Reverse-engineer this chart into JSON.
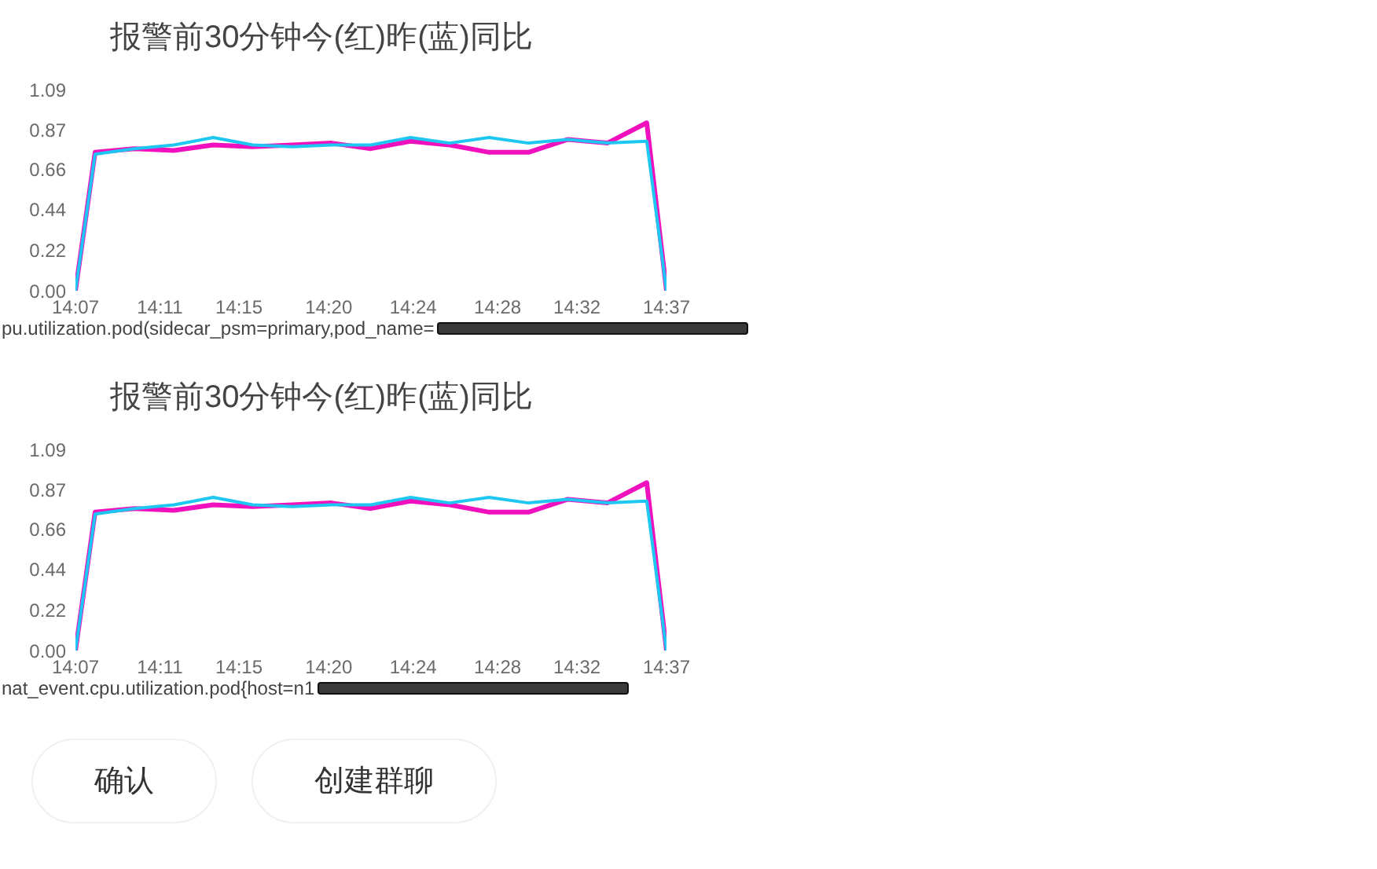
{
  "chart_data": [
    {
      "type": "line",
      "title": "报警前30分钟今(红)昨(蓝)同比",
      "annotations": [
        "pu.utilization.pod(sidecar_psm=primary,pod_name="
      ],
      "x": [
        14.1167,
        14.1333,
        14.1667,
        14.2,
        14.2333,
        14.2667,
        14.3,
        14.3333,
        14.3667,
        14.4,
        14.4333,
        14.4667,
        14.5,
        14.5333,
        14.5667,
        14.6,
        14.6167
      ],
      "series": [
        {
          "color": "#f010be",
          "values": [
            0,
            0.75,
            0.77,
            0.76,
            0.79,
            0.78,
            0.79,
            0.8,
            0.77,
            0.81,
            0.79,
            0.75,
            0.75,
            0.82,
            0.8,
            0.91,
            0
          ]
        },
        {
          "color": "#1ec6f2",
          "values": [
            0,
            0.74,
            0.77,
            0.79,
            0.83,
            0.79,
            0.78,
            0.79,
            0.79,
            0.83,
            0.8,
            0.83,
            0.8,
            0.82,
            0.8,
            0.81,
            0
          ]
        }
      ],
      "xlim": [
        14.1167,
        14.6167
      ],
      "xticks": [
        {
          "value": 14.1167,
          "label": "14:07"
        },
        {
          "value": 14.1881,
          "label": "14:11"
        },
        {
          "value": 14.255,
          "label": "14:15"
        },
        {
          "value": 14.331,
          "label": "14:20"
        },
        {
          "value": 14.4024,
          "label": "14:24"
        },
        {
          "value": 14.4738,
          "label": "14:28"
        },
        {
          "value": 14.541,
          "label": "14:32"
        },
        {
          "value": 14.6167,
          "label": "14:37"
        }
      ],
      "ylim": [
        0,
        1.09
      ],
      "yticks": [
        {
          "value": 0,
          "label": "0.00"
        },
        0.22,
        0.44,
        0.66,
        0.87,
        1.09
      ]
    },
    {
      "type": "line",
      "title": "报警前30分钟今(红)昨(蓝)同比",
      "annotations": [
        "nat_event.cpu.utilization.pod{host=n1"
      ],
      "x": [
        14.1167,
        14.1333,
        14.1667,
        14.2,
        14.2333,
        14.2667,
        14.3,
        14.3333,
        14.3667,
        14.4,
        14.4333,
        14.4667,
        14.5,
        14.5333,
        14.5667,
        14.6,
        14.6167
      ],
      "series": [
        {
          "color": "#f010be",
          "values": [
            0,
            0.75,
            0.77,
            0.76,
            0.79,
            0.78,
            0.79,
            0.8,
            0.77,
            0.81,
            0.79,
            0.75,
            0.75,
            0.82,
            0.8,
            0.91,
            0
          ]
        },
        {
          "color": "#1ec6f2",
          "values": [
            0,
            0.74,
            0.77,
            0.79,
            0.83,
            0.79,
            0.78,
            0.79,
            0.79,
            0.83,
            0.8,
            0.83,
            0.8,
            0.82,
            0.8,
            0.81,
            0
          ]
        }
      ],
      "xlim": [
        14.1167,
        14.6167
      ],
      "xticks": [
        {
          "value": 14.1167,
          "label": "14:07"
        },
        {
          "value": 14.1881,
          "label": "14:11"
        },
        {
          "value": 14.255,
          "label": "14:15"
        },
        {
          "value": 14.331,
          "label": "14:20"
        },
        {
          "value": 14.4024,
          "label": "14:24"
        },
        {
          "value": 14.4738,
          "label": "14:28"
        },
        {
          "value": 14.541,
          "label": "14:32"
        },
        {
          "value": 14.6167,
          "label": "14:37"
        }
      ],
      "ylim": [
        0,
        1.09
      ],
      "yticks": [
        {
          "value": 0,
          "label": "0.00"
        },
        0.22,
        0.44,
        0.66,
        0.87,
        1.09
      ]
    },
    {
      "type": "other",
      "annotations": [
        "确认",
        "创建群聊"
      ]
    }
  ]
}
